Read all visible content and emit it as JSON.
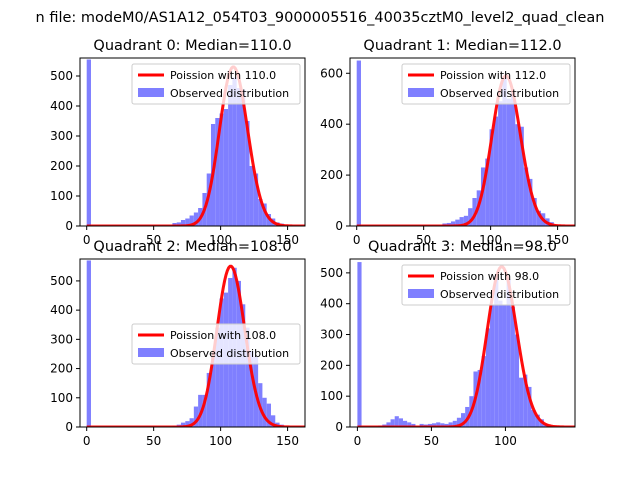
{
  "figure": {
    "suptitle": "n file: modeM0/AS1A12_054T03_9000005516_40035cztM0_level2_quad_clean"
  },
  "colors": {
    "fit_line": "#ff0000",
    "histogram": "#7f7fff"
  },
  "chart_data": [
    {
      "type": "bar",
      "title": "Quadrant 0: Median=110.0",
      "legend_position": "upper right",
      "legend": [
        "Poission with 110.0",
        "Observed distribution"
      ],
      "xlim": [
        -5,
        163
      ],
      "ylim": [
        0,
        560
      ],
      "xticks": [
        0,
        50,
        100,
        150
      ],
      "yticks": [
        0,
        100,
        200,
        300,
        400,
        500
      ],
      "poisson_mean": 110.0,
      "poisson_peak": 530,
      "bin_width": 3.2,
      "bins": [
        {
          "x": 0,
          "y": 555
        },
        {
          "x": 64,
          "y": 10
        },
        {
          "x": 67.2,
          "y": 12
        },
        {
          "x": 70.4,
          "y": 20
        },
        {
          "x": 73.6,
          "y": 25
        },
        {
          "x": 76.8,
          "y": 35
        },
        {
          "x": 80,
          "y": 45
        },
        {
          "x": 83.2,
          "y": 60
        },
        {
          "x": 86.4,
          "y": 110
        },
        {
          "x": 89.6,
          "y": 175
        },
        {
          "x": 92.8,
          "y": 340
        },
        {
          "x": 96,
          "y": 360
        },
        {
          "x": 99.2,
          "y": 375
        },
        {
          "x": 102.4,
          "y": 390
        },
        {
          "x": 105.6,
          "y": 470
        },
        {
          "x": 108.8,
          "y": 495
        },
        {
          "x": 112,
          "y": 460
        },
        {
          "x": 115.2,
          "y": 455
        },
        {
          "x": 118.4,
          "y": 350
        },
        {
          "x": 121.6,
          "y": 200
        },
        {
          "x": 124.8,
          "y": 175
        },
        {
          "x": 128,
          "y": 90
        },
        {
          "x": 131.2,
          "y": 75
        },
        {
          "x": 134.4,
          "y": 40
        },
        {
          "x": 137.6,
          "y": 25
        },
        {
          "x": 140.8,
          "y": 12
        },
        {
          "x": 144,
          "y": 8
        }
      ],
      "series": [
        {
          "name": "Poission with 110.0",
          "type": "line"
        },
        {
          "name": "Observed distribution",
          "type": "bar"
        }
      ]
    },
    {
      "type": "bar",
      "title": "Quadrant 1: Median=112.0",
      "legend_position": "upper right",
      "legend": [
        "Poission with 112.0",
        "Observed distribution"
      ],
      "xlim": [
        -5,
        163
      ],
      "ylim": [
        0,
        660
      ],
      "xticks": [
        0,
        50,
        100,
        150
      ],
      "yticks": [
        0,
        200,
        400,
        600
      ],
      "poisson_mean": 112.0,
      "poisson_peak": 590,
      "bin_width": 3.2,
      "bins": [
        {
          "x": 0,
          "y": 650
        },
        {
          "x": 64,
          "y": 10
        },
        {
          "x": 67.2,
          "y": 12
        },
        {
          "x": 70.4,
          "y": 18
        },
        {
          "x": 73.6,
          "y": 25
        },
        {
          "x": 76.8,
          "y": 35
        },
        {
          "x": 80,
          "y": 40
        },
        {
          "x": 83.2,
          "y": 70
        },
        {
          "x": 86.4,
          "y": 110
        },
        {
          "x": 89.6,
          "y": 140
        },
        {
          "x": 92.8,
          "y": 230
        },
        {
          "x": 96,
          "y": 265
        },
        {
          "x": 99.2,
          "y": 380
        },
        {
          "x": 102.4,
          "y": 430
        },
        {
          "x": 105.6,
          "y": 490
        },
        {
          "x": 108.8,
          "y": 585
        },
        {
          "x": 112,
          "y": 500
        },
        {
          "x": 115.2,
          "y": 525
        },
        {
          "x": 118.4,
          "y": 400
        },
        {
          "x": 121.6,
          "y": 390
        },
        {
          "x": 124.8,
          "y": 230
        },
        {
          "x": 128,
          "y": 185
        },
        {
          "x": 131.2,
          "y": 110
        },
        {
          "x": 134.4,
          "y": 60
        },
        {
          "x": 137.6,
          "y": 50
        },
        {
          "x": 140.8,
          "y": 30
        },
        {
          "x": 144,
          "y": 15
        }
      ],
      "series": [
        {
          "name": "Poission with 112.0",
          "type": "line"
        },
        {
          "name": "Observed distribution",
          "type": "bar"
        }
      ]
    },
    {
      "type": "bar",
      "title": "Quadrant 2: Median=108.0",
      "legend_position": "center right",
      "legend": [
        "Poission with 108.0",
        "Observed distribution"
      ],
      "xlim": [
        -5,
        163
      ],
      "ylim": [
        0,
        575
      ],
      "xticks": [
        0,
        50,
        100,
        150
      ],
      "yticks": [
        0,
        100,
        200,
        300,
        400,
        500
      ],
      "poisson_mean": 108.0,
      "poisson_peak": 550,
      "bin_width": 3.2,
      "bins": [
        {
          "x": 0,
          "y": 570
        },
        {
          "x": 64,
          "y": 5
        },
        {
          "x": 67.2,
          "y": 8
        },
        {
          "x": 70.4,
          "y": 15
        },
        {
          "x": 73.6,
          "y": 20
        },
        {
          "x": 76.8,
          "y": 30
        },
        {
          "x": 80,
          "y": 70
        },
        {
          "x": 83.2,
          "y": 110
        },
        {
          "x": 86.4,
          "y": 110
        },
        {
          "x": 89.6,
          "y": 185
        },
        {
          "x": 92.8,
          "y": 240
        },
        {
          "x": 96,
          "y": 340
        },
        {
          "x": 99.2,
          "y": 440
        },
        {
          "x": 102.4,
          "y": 460
        },
        {
          "x": 105.6,
          "y": 510
        },
        {
          "x": 108.8,
          "y": 545
        },
        {
          "x": 112,
          "y": 500
        },
        {
          "x": 115.2,
          "y": 420
        },
        {
          "x": 118.4,
          "y": 340
        },
        {
          "x": 121.6,
          "y": 260
        },
        {
          "x": 124.8,
          "y": 240
        },
        {
          "x": 128,
          "y": 150
        },
        {
          "x": 131.2,
          "y": 100
        },
        {
          "x": 134.4,
          "y": 80
        },
        {
          "x": 137.6,
          "y": 40
        },
        {
          "x": 140.8,
          "y": 15
        },
        {
          "x": 144,
          "y": 8
        }
      ],
      "series": [
        {
          "name": "Poission with 108.0",
          "type": "line"
        },
        {
          "name": "Observed distribution",
          "type": "bar"
        }
      ]
    },
    {
      "type": "bar",
      "title": "Quadrant 3: Median=98.0",
      "legend_position": "upper right",
      "legend": [
        "Poission with 98.0",
        "Observed distribution"
      ],
      "xlim": [
        -5,
        147
      ],
      "ylim": [
        0,
        545
      ],
      "xticks": [
        0,
        50,
        100
      ],
      "yticks": [
        0,
        100,
        200,
        300,
        400,
        500
      ],
      "poisson_mean": 98.0,
      "poisson_peak": 520,
      "bin_width": 2.8,
      "bins": [
        {
          "x": 0,
          "y": 535
        },
        {
          "x": 14,
          "y": 5
        },
        {
          "x": 16.8,
          "y": 8
        },
        {
          "x": 19.6,
          "y": 15
        },
        {
          "x": 22.4,
          "y": 25
        },
        {
          "x": 25.2,
          "y": 35
        },
        {
          "x": 28,
          "y": 28
        },
        {
          "x": 30.8,
          "y": 20
        },
        {
          "x": 33.6,
          "y": 15
        },
        {
          "x": 36.4,
          "y": 10
        },
        {
          "x": 42,
          "y": 10
        },
        {
          "x": 44.8,
          "y": 8
        },
        {
          "x": 47.6,
          "y": 10
        },
        {
          "x": 50.4,
          "y": 12
        },
        {
          "x": 53.2,
          "y": 15
        },
        {
          "x": 56,
          "y": 12
        },
        {
          "x": 58.8,
          "y": 10
        },
        {
          "x": 61.6,
          "y": 15
        },
        {
          "x": 64.4,
          "y": 20
        },
        {
          "x": 67.2,
          "y": 30
        },
        {
          "x": 70,
          "y": 45
        },
        {
          "x": 72.8,
          "y": 65
        },
        {
          "x": 75.6,
          "y": 100
        },
        {
          "x": 78.4,
          "y": 180
        },
        {
          "x": 81.2,
          "y": 185
        },
        {
          "x": 84,
          "y": 230
        },
        {
          "x": 86.8,
          "y": 320
        },
        {
          "x": 89.6,
          "y": 395
        },
        {
          "x": 92.4,
          "y": 490
        },
        {
          "x": 95.2,
          "y": 410
        },
        {
          "x": 98,
          "y": 395
        },
        {
          "x": 100.8,
          "y": 480
        },
        {
          "x": 103.6,
          "y": 390
        },
        {
          "x": 106.4,
          "y": 300
        },
        {
          "x": 109.2,
          "y": 160
        },
        {
          "x": 112,
          "y": 170
        },
        {
          "x": 114.8,
          "y": 130
        },
        {
          "x": 117.6,
          "y": 55
        },
        {
          "x": 120.4,
          "y": 40
        },
        {
          "x": 123.2,
          "y": 25
        },
        {
          "x": 126,
          "y": 10
        },
        {
          "x": 128.8,
          "y": 5
        }
      ],
      "series": [
        {
          "name": "Poission with 98.0",
          "type": "line"
        },
        {
          "name": "Observed distribution",
          "type": "bar"
        }
      ]
    }
  ]
}
